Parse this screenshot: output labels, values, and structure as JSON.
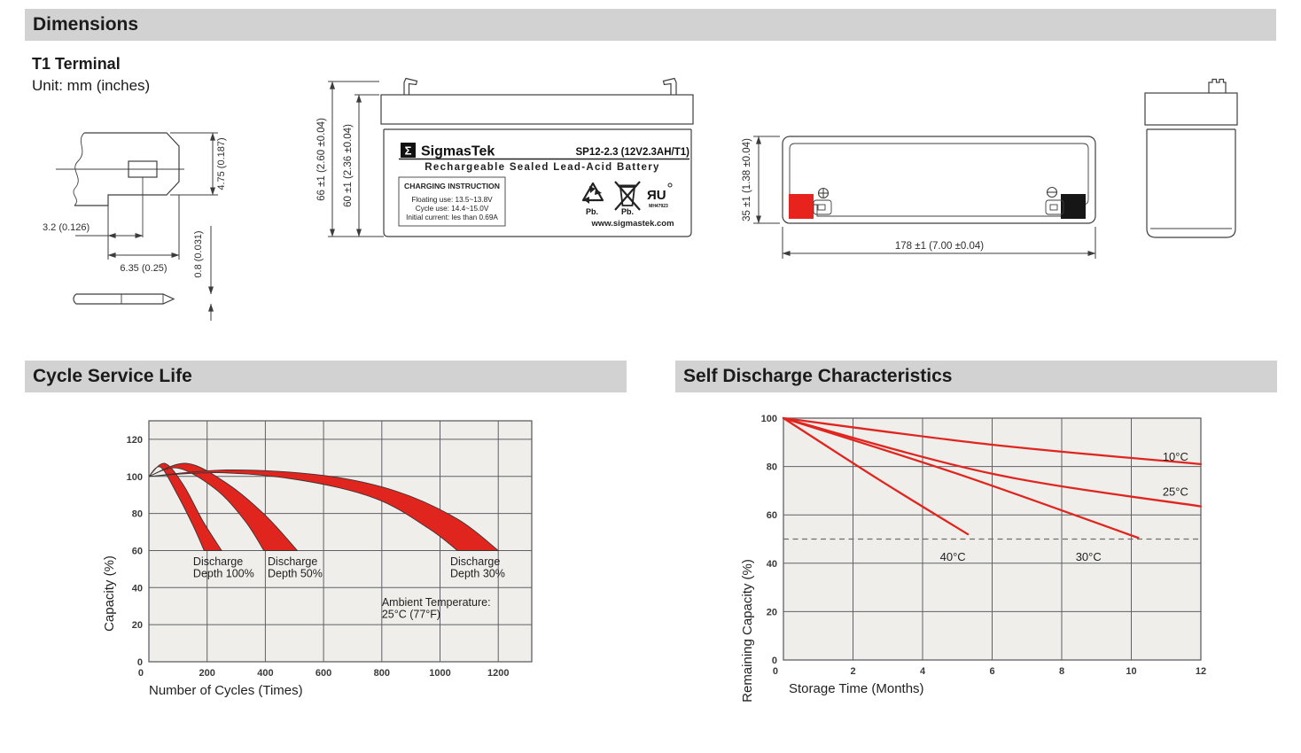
{
  "page": {
    "header": "Dimensions",
    "terminal_type": "T1 Terminal",
    "unit_note": "Unit: mm (inches)",
    "section_cycle": "Cycle Service Life",
    "section_self_discharge": "Self Discharge Characteristics"
  },
  "terminal_drawing": {
    "dim_height": "4.75 (0.187)",
    "dim_offset": "3.2 (0.126)",
    "dim_width": "6.35 (0.25)",
    "dim_thickness": "0.8 (0.031)"
  },
  "front_view": {
    "dim_total_height": "66 ±1 (2.60 ±0.04)",
    "dim_case_height": "60 ±1 (2.36 ±0.04)",
    "label": {
      "sigma": "Σ",
      "brand": "SigmasTek",
      "model": "SP12-2.3 (12V2.3AH/T1)",
      "subtitle": "Rechargeable Sealed Lead-Acid Battery",
      "charging": {
        "title": "CHARGING INSTRUCTION",
        "line1": "Floating use: 13.5~13.8V",
        "line2": "Cycle use: 14.4~15.0V",
        "line3": "Initial current: les than 0.69A"
      },
      "recycle_label": "Pb.",
      "bin_label": "Pb.",
      "ul_mark": "ЯU",
      "ul_code": "MH47923",
      "website": "www.sigmastek.com"
    }
  },
  "top_view": {
    "dim_height": "35 ±1 (1.38 ±0.04)",
    "dim_length": "178 ±1 (7.00 ±0.04)"
  },
  "chart_data": [
    {
      "id": "cycle_service_life",
      "type": "area",
      "title": "Cycle Service Life",
      "xlabel": "Number of Cycles (Times)",
      "ylabel": "Capacity (%)",
      "xlim": [
        0,
        1315
      ],
      "ylim": [
        0,
        130
      ],
      "xticks": [
        0,
        200,
        400,
        600,
        800,
        1000,
        1200
      ],
      "yticks": [
        0,
        20,
        40,
        60,
        80,
        100,
        120
      ],
      "grid": true,
      "bands": [
        {
          "name": "Discharge Depth 100%",
          "upper": [
            [
              0,
              100
            ],
            [
              55,
              107
            ],
            [
              120,
              95
            ],
            [
              185,
              76
            ],
            [
              250,
              60
            ]
          ],
          "lower": [
            [
              0,
              100
            ],
            [
              40,
              105
            ],
            [
              95,
              91
            ],
            [
              150,
              74
            ],
            [
              190,
              60
            ]
          ]
        },
        {
          "name": "Discharge Depth 50%",
          "upper": [
            [
              0,
              100
            ],
            [
              130,
              107
            ],
            [
              270,
              96
            ],
            [
              400,
              79
            ],
            [
              510,
              60
            ]
          ],
          "lower": [
            [
              0,
              100
            ],
            [
              100,
              104.5
            ],
            [
              230,
              93
            ],
            [
              330,
              76
            ],
            [
              395,
              60
            ]
          ]
        },
        {
          "name": "Discharge Depth 30%",
          "upper": [
            [
              0,
              100
            ],
            [
              280,
              103.5
            ],
            [
              600,
              100.5
            ],
            [
              850,
              92
            ],
            [
              1060,
              77
            ],
            [
              1200,
              60
            ]
          ],
          "lower": [
            [
              0,
              100
            ],
            [
              240,
              102
            ],
            [
              520,
              98
            ],
            [
              780,
              88
            ],
            [
              960,
              72
            ],
            [
              1060,
              60
            ]
          ]
        }
      ],
      "annotations": [
        {
          "x": 152,
          "y": 52,
          "lines": [
            "Discharge",
            "Depth 100%"
          ]
        },
        {
          "x": 408,
          "y": 52,
          "lines": [
            "Discharge",
            "Depth 50%"
          ]
        },
        {
          "x": 1035,
          "y": 52,
          "lines": [
            "Discharge",
            "Depth 30%"
          ]
        },
        {
          "x": 800,
          "y": 30,
          "lines": [
            "Ambient Temperature:",
            "25°C (77°F)"
          ]
        }
      ]
    },
    {
      "id": "self_discharge",
      "type": "line",
      "title": "Self Discharge Characteristics",
      "xlabel": "Storage Time (Months)",
      "ylabel": "Remaining Capacity (%)",
      "xlim": [
        0,
        12
      ],
      "ylim": [
        0,
        100
      ],
      "xticks": [
        0,
        2,
        4,
        6,
        8,
        10,
        12
      ],
      "yticks": [
        0,
        20,
        40,
        60,
        80,
        100
      ],
      "grid": true,
      "reference_line_y": 50,
      "series": [
        {
          "name": "10°C",
          "points": [
            [
              0,
              100
            ],
            [
              6,
              89
            ],
            [
              12,
              81
            ]
          ],
          "label_pos": [
            10.9,
            82.5
          ]
        },
        {
          "name": "25°C",
          "points": [
            [
              0,
              100
            ],
            [
              6,
              77
            ],
            [
              12,
              63.5
            ]
          ],
          "label_pos": [
            10.9,
            68
          ]
        },
        {
          "name": "30°C",
          "points": [
            [
              0,
              100
            ],
            [
              5,
              77
            ],
            [
              10.2,
              50.5
            ]
          ],
          "label_pos": [
            8.4,
            41
          ]
        },
        {
          "name": "40°C",
          "points": [
            [
              0,
              100
            ],
            [
              2.7,
              75
            ],
            [
              5.3,
              52
            ]
          ],
          "label_pos": [
            4.5,
            41
          ]
        }
      ]
    }
  ],
  "colors": {
    "accent_red": "#e0251f",
    "header_gray": "#d2d2d2",
    "plot_bg": "#efeeeb",
    "grid": "#5f6064",
    "terminal_red": "#e8231d",
    "terminal_black": "#161616"
  }
}
